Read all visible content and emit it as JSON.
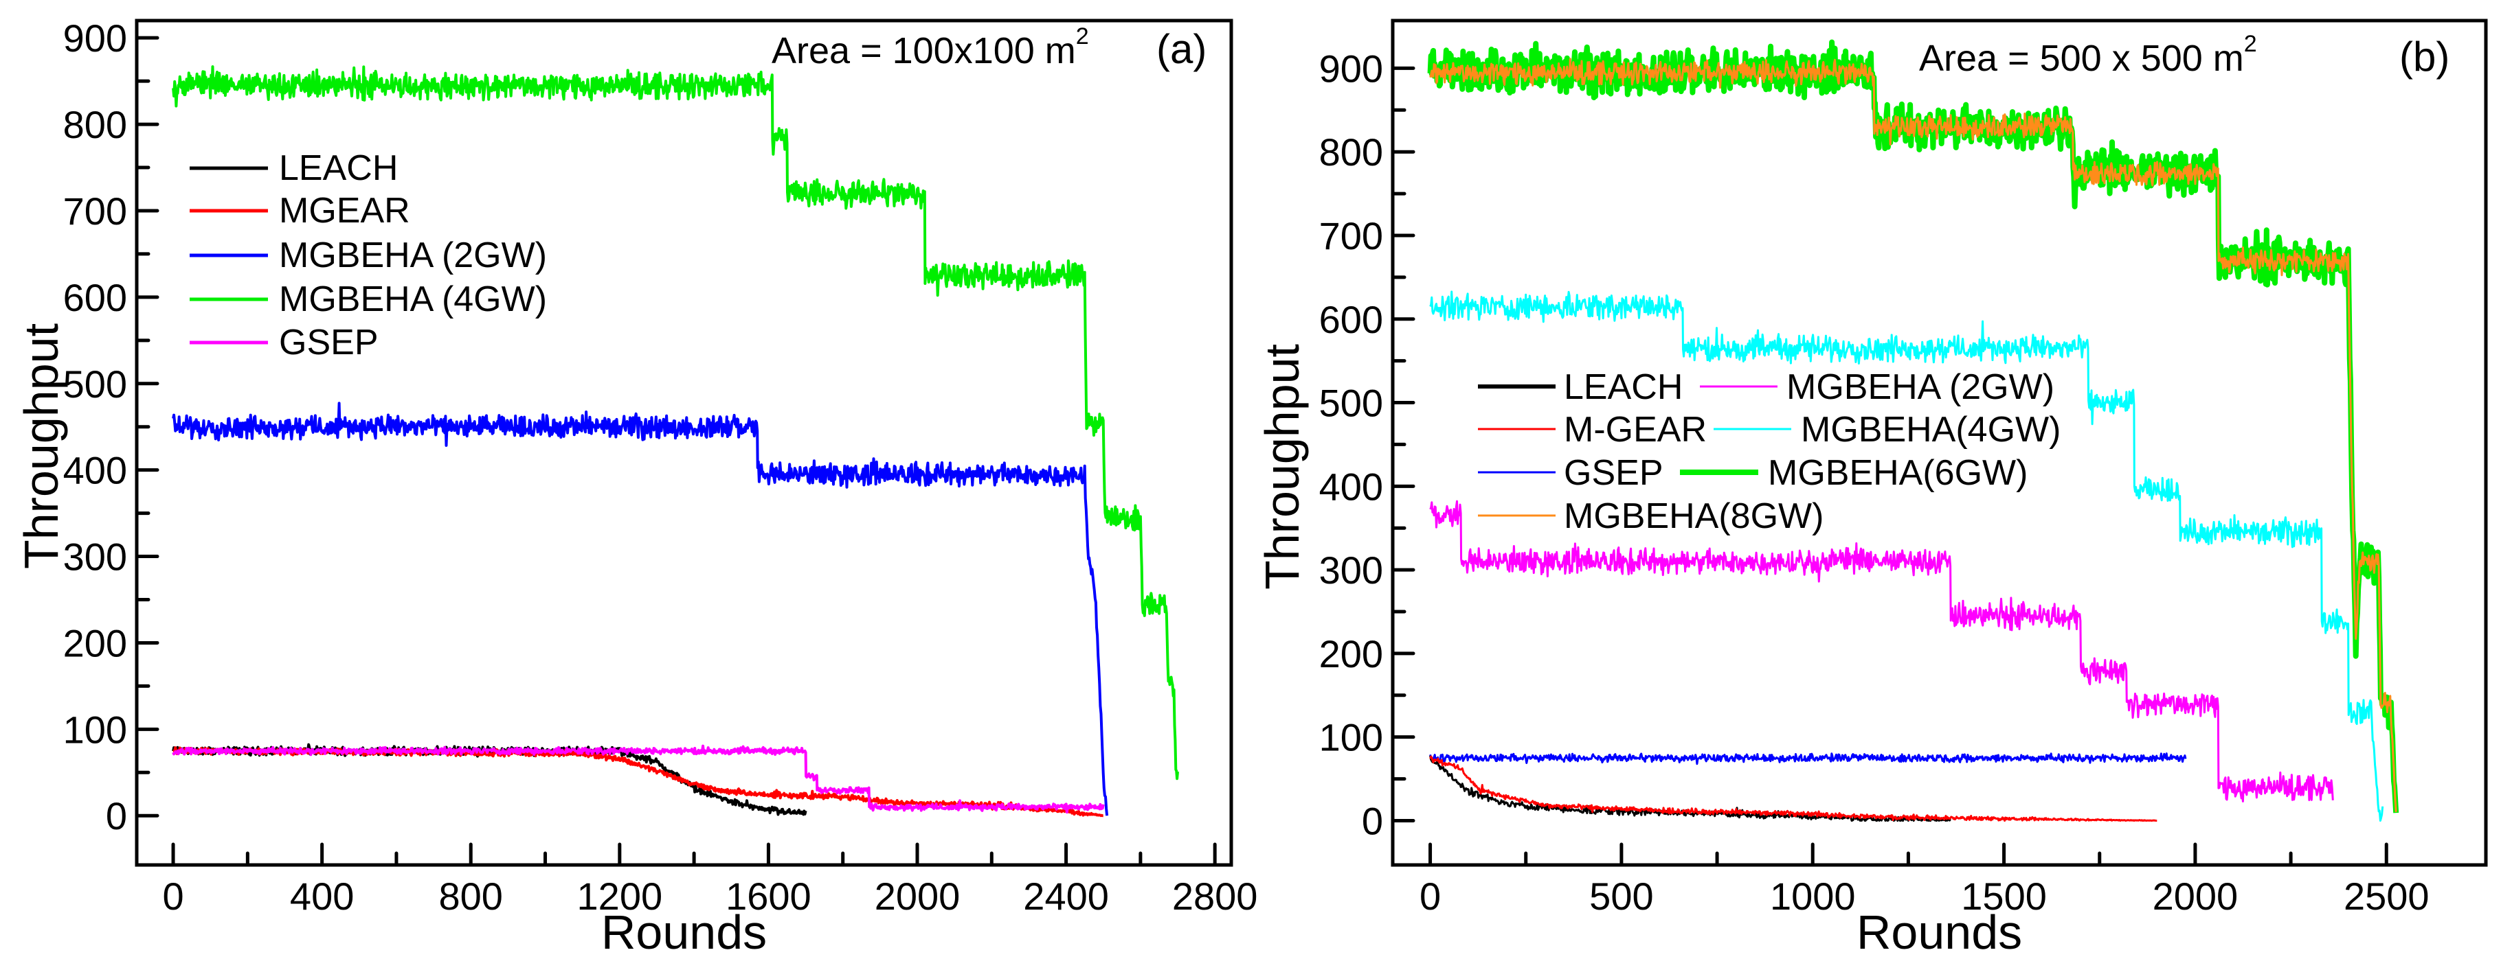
{
  "chart_data": [
    {
      "type": "line",
      "panel_label": "(a)",
      "annotation": "Area = 100x100 m",
      "annotation_sup": "2",
      "xlabel": "Rounds",
      "ylabel": "Throughput",
      "xlim": [
        -98,
        2844
      ],
      "ylim": [
        -57,
        920
      ],
      "xticks": [
        0,
        400,
        800,
        1200,
        1600,
        2000,
        2400,
        2800
      ],
      "xtick_labels": [
        "0",
        "400",
        "800",
        "1200",
        "1600",
        "2000",
        "2400",
        "2800"
      ],
      "xminor_step": 200,
      "yticks": [
        0,
        100,
        200,
        300,
        400,
        500,
        600,
        700,
        800,
        900
      ],
      "ytick_labels": [
        "0",
        "100",
        "200",
        "300",
        "400",
        "500",
        "600",
        "700",
        "800",
        "900"
      ],
      "yminor_step": 50,
      "grid": false,
      "legend_position": "upper-left",
      "series": [
        {
          "name": "LEACH",
          "color": "#000000",
          "noise": 4,
          "points": [
            [
              0,
              75
            ],
            [
              1200,
              75
            ],
            [
              1300,
              62
            ],
            [
              1350,
              47
            ],
            [
              1400,
              32
            ],
            [
              1500,
              16
            ],
            [
              1600,
              6
            ],
            [
              1700,
              3
            ]
          ]
        },
        {
          "name": "MGEAR",
          "color": "#ff0000",
          "noise": 3,
          "points": [
            [
              0,
              75
            ],
            [
              1100,
              72
            ],
            [
              1200,
              66
            ],
            [
              1300,
              52
            ],
            [
              1400,
              36
            ],
            [
              1500,
              27
            ],
            [
              1600,
              24
            ],
            [
              1800,
              22
            ],
            [
              1900,
              17
            ],
            [
              2000,
              14
            ],
            [
              2200,
              12
            ],
            [
              2400,
              5
            ],
            [
              2500,
              0
            ]
          ]
        },
        {
          "name": "MGBEHA (2GW)",
          "color": "#0000ff",
          "noise": 11,
          "points": [
            [
              0,
              450
            ],
            [
              1570,
              450
            ],
            [
              1571,
              395
            ],
            [
              2450,
              395
            ],
            [
              2460,
              300
            ],
            [
              2480,
              250
            ],
            [
              2490,
              150
            ],
            [
              2500,
              50
            ],
            [
              2510,
              0
            ]
          ]
        },
        {
          "name": "MGBEHA (4GW)",
          "color": "#00ee00",
          "noise": 13,
          "points": [
            [
              0,
              845
            ],
            [
              1610,
              845
            ],
            [
              1611,
              785
            ],
            [
              1650,
              785
            ],
            [
              1651,
              720
            ],
            [
              2020,
              720
            ],
            [
              2021,
              625
            ],
            [
              2450,
              625
            ],
            [
              2455,
              450
            ],
            [
              2500,
              450
            ],
            [
              2505,
              345
            ],
            [
              2600,
              345
            ],
            [
              2605,
              245
            ],
            [
              2670,
              245
            ],
            [
              2675,
              150
            ],
            [
              2690,
              150
            ],
            [
              2695,
              50
            ],
            [
              2700,
              55
            ]
          ]
        },
        {
          "name": "GSEP",
          "color": "#ff00ff",
          "noise": 3,
          "points": [
            [
              0,
              75
            ],
            [
              1700,
              75
            ],
            [
              1701,
              45
            ],
            [
              1730,
              45
            ],
            [
              1731,
              30
            ],
            [
              1870,
              30
            ],
            [
              1871,
              10
            ],
            [
              2500,
              10
            ]
          ]
        }
      ]
    },
    {
      "type": "line",
      "panel_label": "(b)",
      "annotation": "Area = 500 x 500 m",
      "annotation_sup": "2",
      "xlabel": "Rounds",
      "ylabel": "Throughput",
      "xlim": [
        -98,
        2760
      ],
      "ylim": [
        -53,
        957
      ],
      "xticks": [
        0,
        500,
        1000,
        1500,
        2000,
        2500
      ],
      "xtick_labels": [
        "0",
        "500",
        "1000",
        "1500",
        "2000",
        "2500"
      ],
      "xminor_step": 250,
      "yticks": [
        0,
        100,
        200,
        300,
        400,
        500,
        600,
        700,
        800,
        900
      ],
      "ytick_labels": [
        "0",
        "100",
        "200",
        "300",
        "400",
        "500",
        "600",
        "700",
        "800",
        "900"
      ],
      "yminor_step": 50,
      "grid": false,
      "legend_position": "center-left",
      "series": [
        {
          "name": "MGBEHA(6GW)",
          "color": "#00ee00",
          "noise": 22,
          "points": [
            [
              0,
              895
            ],
            [
              1160,
              895
            ],
            [
              1161,
              830
            ],
            [
              1680,
              830
            ],
            [
              1681,
              775
            ],
            [
              2060,
              775
            ],
            [
              2061,
              670
            ],
            [
              2400,
              670
            ],
            [
              2410,
              400
            ],
            [
              2420,
              210
            ],
            [
              2430,
              310
            ],
            [
              2480,
              310
            ],
            [
              2485,
              140
            ],
            [
              2510,
              140
            ],
            [
              2525,
              10
            ]
          ]
        },
        {
          "name": "MGBEHA(8GW)",
          "color": "#ff8c1a",
          "noise": 12,
          "points": [
            [
              0,
              895
            ],
            [
              1160,
              895
            ],
            [
              1161,
              830
            ],
            [
              1680,
              830
            ],
            [
              1681,
              775
            ],
            [
              2060,
              775
            ],
            [
              2061,
              670
            ],
            [
              2400,
              670
            ],
            [
              2410,
              400
            ],
            [
              2420,
              210
            ],
            [
              2430,
              310
            ],
            [
              2480,
              310
            ],
            [
              2485,
              140
            ],
            [
              2510,
              140
            ],
            [
              2525,
              10
            ]
          ]
        },
        {
          "name": "MGBEHA(4GW)",
          "color": "#00ffff",
          "noise": 13,
          "points": [
            [
              0,
              615
            ],
            [
              660,
              615
            ],
            [
              661,
              565
            ],
            [
              1720,
              565
            ],
            [
              1721,
              500
            ],
            [
              1840,
              500
            ],
            [
              1841,
              395
            ],
            [
              1960,
              395
            ],
            [
              1961,
              345
            ],
            [
              2330,
              345
            ],
            [
              2331,
              240
            ],
            [
              2400,
              240
            ],
            [
              2401,
              130
            ],
            [
              2460,
              130
            ],
            [
              2480,
              10
            ],
            [
              2490,
              10
            ]
          ]
        },
        {
          "name": "MGBEHA (2GW)",
          "color": "#ff00ff",
          "noise": 13,
          "points": [
            [
              0,
              365
            ],
            [
              80,
              365
            ],
            [
              81,
              310
            ],
            [
              1360,
              310
            ],
            [
              1361,
              245
            ],
            [
              1700,
              245
            ],
            [
              1701,
              180
            ],
            [
              1820,
              180
            ],
            [
              1821,
              140
            ],
            [
              2060,
              140
            ],
            [
              2061,
              40
            ],
            [
              2360,
              40
            ]
          ]
        },
        {
          "name": "GSEP",
          "color": "#0000ff",
          "noise": 4,
          "points": [
            [
              0,
              75
            ],
            [
              1975,
              75
            ]
          ]
        },
        {
          "name": "LEACH",
          "color": "#000000",
          "noise": 4,
          "points": [
            [
              0,
              75
            ],
            [
              50,
              55
            ],
            [
              100,
              35
            ],
            [
              200,
              20
            ],
            [
              400,
              12
            ],
            [
              800,
              8
            ],
            [
              1100,
              3
            ],
            [
              1360,
              1
            ]
          ]
        },
        {
          "name": "M-GEAR",
          "color": "#ff0000",
          "noise": 3,
          "points": [
            [
              0,
              75
            ],
            [
              80,
              62
            ],
            [
              130,
              36
            ],
            [
              300,
              18
            ],
            [
              600,
              12
            ],
            [
              1000,
              8
            ],
            [
              1200,
              4
            ],
            [
              1900,
              0
            ]
          ]
        }
      ]
    }
  ]
}
